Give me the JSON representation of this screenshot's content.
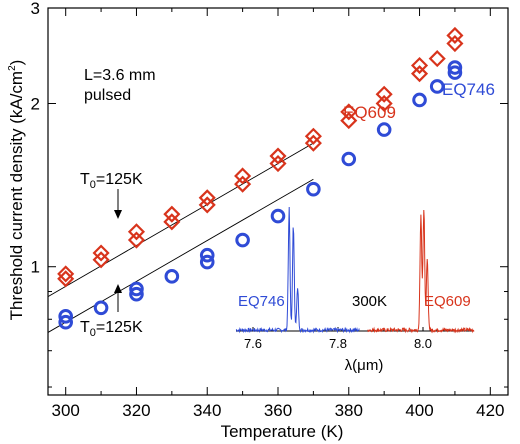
{
  "chart_data": {
    "type": "scatter",
    "xlabel": "Temperature (K)",
    "ylabel": "Threshold current density (kA/cm",
    "ylabel_sup": "2",
    "ylabel_close": ")",
    "y_scale": "log",
    "xlim": [
      295,
      425
    ],
    "ylim": [
      0.58,
      3.0
    ],
    "x_ticks": [
      300,
      320,
      340,
      360,
      380,
      400,
      420
    ],
    "y_tick_labels": [
      {
        "value": 1,
        "label": "1"
      },
      {
        "value": 2,
        "label": "2"
      },
      {
        "value": 3,
        "label": "3"
      }
    ],
    "annotations": {
      "condition_line1": "L=3.6 mm",
      "condition_line2": "pulsed",
      "t0_upper_main": "T",
      "t0_upper_sub": "0",
      "t0_upper_rest": "=125K",
      "t0_lower_main": "T",
      "t0_lower_sub": "0",
      "t0_lower_rest": "=125K"
    },
    "series": [
      {
        "name": "EQ609",
        "marker": "diamond",
        "color": "#d8341c",
        "points": [
          [
            300,
            0.95
          ],
          [
            300,
            0.97
          ],
          [
            310,
            1.03
          ],
          [
            310,
            1.06
          ],
          [
            320,
            1.12
          ],
          [
            320,
            1.16
          ],
          [
            330,
            1.21
          ],
          [
            330,
            1.25
          ],
          [
            340,
            1.3
          ],
          [
            340,
            1.34
          ],
          [
            350,
            1.42
          ],
          [
            350,
            1.47
          ],
          [
            360,
            1.55
          ],
          [
            360,
            1.6
          ],
          [
            370,
            1.69
          ],
          [
            370,
            1.74
          ],
          [
            380,
            1.86
          ],
          [
            380,
            1.93
          ],
          [
            390,
            2.0
          ],
          [
            390,
            2.08
          ],
          [
            400,
            2.27
          ],
          [
            400,
            2.35
          ],
          [
            405,
            2.42
          ],
          [
            410,
            2.58
          ],
          [
            410,
            2.67
          ]
        ],
        "fit": [
          [
            300,
            0.92
          ],
          [
            370,
            1.69
          ]
        ]
      },
      {
        "name": "EQ746",
        "marker": "circle",
        "color": "#2f4bd6",
        "points": [
          [
            300,
            0.79
          ],
          [
            300,
            0.81
          ],
          [
            310,
            0.84
          ],
          [
            320,
            0.89
          ],
          [
            320,
            0.91
          ],
          [
            330,
            0.96
          ],
          [
            340,
            1.02
          ],
          [
            340,
            1.05
          ],
          [
            350,
            1.12
          ],
          [
            360,
            1.24
          ],
          [
            370,
            1.39
          ],
          [
            380,
            1.58
          ],
          [
            390,
            1.79
          ],
          [
            400,
            2.03
          ],
          [
            405,
            2.15
          ],
          [
            410,
            2.28
          ],
          [
            410,
            2.33
          ]
        ],
        "fit": [
          [
            300,
            0.79
          ],
          [
            370,
            1.45
          ]
        ]
      }
    ],
    "inset": {
      "xlabel_main": "λ(",
      "xlabel_mu": "μ",
      "xlabel_end": "m)",
      "xlim": [
        7.56,
        8.12
      ],
      "x_ticks": [
        {
          "value": 7.6,
          "label": "7.6"
        },
        {
          "value": 7.8,
          "label": "7.8"
        },
        {
          "value": 8.0,
          "label": "8.0"
        }
      ],
      "temperature_label": "300K",
      "spectra": [
        {
          "name": "EQ746",
          "color": "#2f4bd6",
          "range": [
            7.56,
            7.85
          ],
          "peaks": [
            {
              "x": 7.685,
              "h": 1.0
            },
            {
              "x": 7.695,
              "h": 0.86
            },
            {
              "x": 7.705,
              "h": 0.35
            }
          ]
        },
        {
          "name": "EQ609",
          "color": "#d8341c",
          "range": [
            7.87,
            8.12
          ],
          "peaks": [
            {
              "x": 7.995,
              "h": 0.95
            },
            {
              "x": 8.002,
              "h": 1.0
            },
            {
              "x": 8.01,
              "h": 0.6
            }
          ]
        }
      ]
    }
  }
}
